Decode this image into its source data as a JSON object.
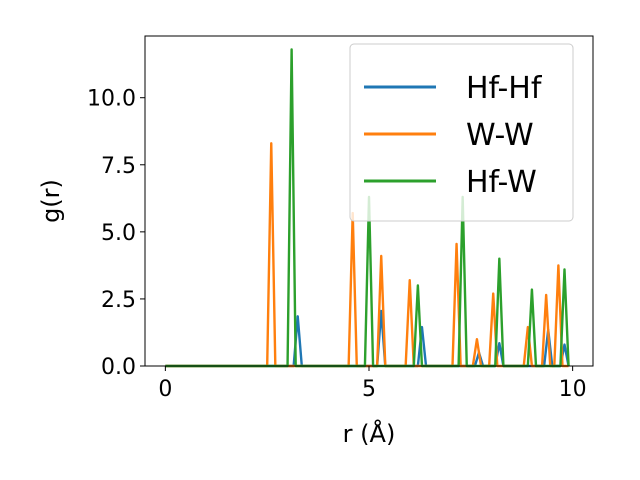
{
  "chart_data": {
    "type": "line",
    "title": "",
    "xlabel": "r (Å)",
    "ylabel": "g(r)",
    "xlim": [
      -0.5,
      10.5
    ],
    "ylim": [
      0,
      12.3
    ],
    "xticks": [
      0,
      5,
      10
    ],
    "xtick_labels": [
      "0",
      "5",
      "10"
    ],
    "yticks": [
      0,
      2.5,
      5,
      7.5,
      10
    ],
    "ytick_labels": [
      "0.0",
      "2.5",
      "5.0",
      "7.5",
      "10.0"
    ],
    "grid": false,
    "legend": "top-right",
    "series": [
      {
        "name": "Hf-Hf",
        "color": "#1f77b4",
        "points": [
          [
            0,
            0
          ],
          [
            3.15,
            0
          ],
          [
            3.25,
            1.85
          ],
          [
            3.35,
            0
          ],
          [
            5.2,
            0
          ],
          [
            5.3,
            2.05
          ],
          [
            5.4,
            0
          ],
          [
            6.2,
            0
          ],
          [
            6.3,
            1.45
          ],
          [
            6.4,
            0
          ],
          [
            7.6,
            0
          ],
          [
            7.7,
            0.5
          ],
          [
            7.8,
            0
          ],
          [
            8.1,
            0
          ],
          [
            8.2,
            0.85
          ],
          [
            8.3,
            0
          ],
          [
            9.3,
            0
          ],
          [
            9.4,
            1.35
          ],
          [
            9.5,
            0
          ],
          [
            9.7,
            0
          ],
          [
            9.8,
            0.8
          ],
          [
            9.9,
            0
          ]
        ]
      },
      {
        "name": "W-W",
        "color": "#ff7f0e",
        "points": [
          [
            0,
            0
          ],
          [
            2.5,
            0
          ],
          [
            2.6,
            8.3
          ],
          [
            2.7,
            0
          ],
          [
            4.5,
            0
          ],
          [
            4.6,
            5.7
          ],
          [
            4.7,
            0
          ],
          [
            5.2,
            0
          ],
          [
            5.3,
            4.1
          ],
          [
            5.4,
            0
          ],
          [
            5.9,
            0
          ],
          [
            6.0,
            3.2
          ],
          [
            6.1,
            0
          ],
          [
            7.05,
            0
          ],
          [
            7.15,
            4.55
          ],
          [
            7.25,
            0
          ],
          [
            7.55,
            0
          ],
          [
            7.65,
            1.0
          ],
          [
            7.75,
            0
          ],
          [
            7.95,
            0
          ],
          [
            8.05,
            2.7
          ],
          [
            8.15,
            0
          ],
          [
            8.8,
            0
          ],
          [
            8.9,
            1.45
          ],
          [
            9.0,
            0
          ],
          [
            9.25,
            0
          ],
          [
            9.35,
            2.65
          ],
          [
            9.45,
            0
          ],
          [
            9.55,
            0
          ],
          [
            9.65,
            3.75
          ],
          [
            9.75,
            0
          ],
          [
            9.9,
            0
          ]
        ]
      },
      {
        "name": "Hf-W",
        "color": "#2ca02c",
        "points": [
          [
            0,
            0
          ],
          [
            3.0,
            0
          ],
          [
            3.1,
            11.8
          ],
          [
            3.2,
            0
          ],
          [
            4.9,
            0
          ],
          [
            5.0,
            6.3
          ],
          [
            5.1,
            0
          ],
          [
            6.1,
            0
          ],
          [
            6.2,
            3.0
          ],
          [
            6.3,
            0
          ],
          [
            7.2,
            0
          ],
          [
            7.3,
            6.3
          ],
          [
            7.4,
            0
          ],
          [
            8.1,
            0
          ],
          [
            8.2,
            4.0
          ],
          [
            8.3,
            0
          ],
          [
            8.9,
            0
          ],
          [
            9.0,
            2.85
          ],
          [
            9.1,
            0
          ],
          [
            9.7,
            0
          ],
          [
            9.8,
            3.6
          ],
          [
            9.9,
            0
          ]
        ]
      }
    ]
  }
}
